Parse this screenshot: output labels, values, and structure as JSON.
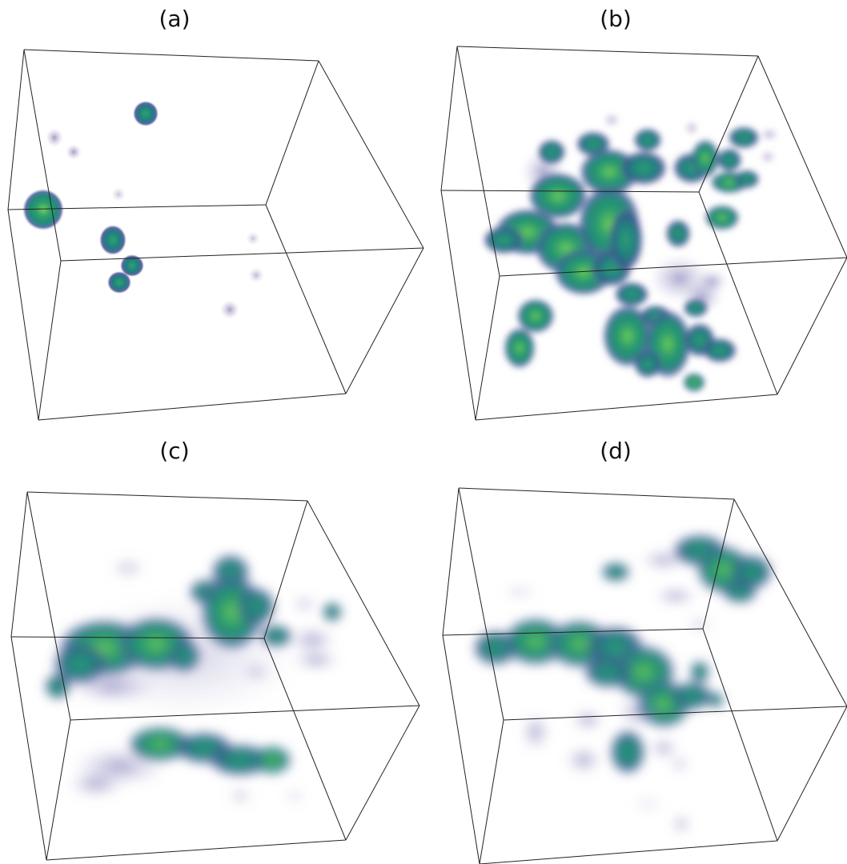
{
  "figure": {
    "panels": [
      {
        "id": "a",
        "label": "(a)"
      },
      {
        "id": "b",
        "label": "(b)"
      },
      {
        "id": "c",
        "label": "(c)"
      },
      {
        "id": "d",
        "label": "(d)"
      }
    ],
    "colors": {
      "box_edge": "#222222",
      "colormap": [
        "#8e7bb5",
        "#4a4f94",
        "#2f6f8c",
        "#218b79",
        "#2d9f6c",
        "#6fce57"
      ]
    }
  }
}
